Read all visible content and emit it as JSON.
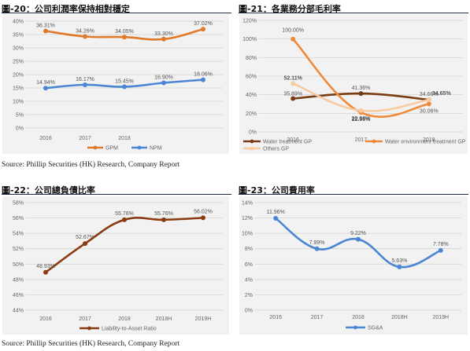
{
  "fig20_title": "圖-20：公司利潤率保持相對穩定",
  "fig21_title": "圖-21：各業務分部毛利率",
  "fig22_title": "圖-22：公司總負債比率",
  "fig23_title": "圖-23：公司費用率",
  "source_top": "Source: Phillip Securities (HK) Research, Company Report",
  "source_bottom": "Source: Phillip Securities (HK) Research, Company Report",
  "chart_data": [
    {
      "type": "line",
      "x": [
        "2016",
        "2017",
        "2018",
        "",
        ""
      ],
      "ylim": [
        0,
        40
      ],
      "yticks": [
        0,
        5,
        10,
        15,
        20,
        25,
        30,
        35,
        40
      ],
      "ytick_labels": [
        "0%",
        "5%",
        "10%",
        "15%",
        "20%",
        "25%",
        "30%",
        "35%",
        "40%"
      ],
      "series": [
        {
          "name": "GPM",
          "color": "#e07a2a",
          "values": [
            36.31,
            34.26,
            34.05,
            33.3,
            37.02
          ],
          "labels": [
            "36.31%",
            "34.26%",
            "34.05%",
            "33.30%",
            "37.02%"
          ]
        },
        {
          "name": "NPM",
          "color": "#4a86d4",
          "values": [
            14.94,
            16.17,
            15.45,
            16.9,
            18.06
          ],
          "labels": [
            "14.94%",
            "16.17%",
            "15.45%",
            "16.90%",
            "18.06%"
          ]
        }
      ]
    },
    {
      "type": "line",
      "x": [
        "2016",
        "2017",
        "2018"
      ],
      "ylim": [
        0,
        120
      ],
      "yticks": [
        0,
        20,
        40,
        60,
        80,
        100,
        120
      ],
      "ytick_labels": [
        "0%",
        "20%",
        "40%",
        "60%",
        "80%",
        "100%",
        "120%"
      ],
      "series": [
        {
          "name": "Water treatment GP",
          "color": "#7a3b12",
          "values": [
            35.89,
            41.36,
            34.65
          ],
          "labels": [
            "35.89%",
            "41.36%",
            "34.65%"
          ]
        },
        {
          "name": "Water environment treatment GP",
          "color": "#ee8a3a",
          "values": [
            100.0,
            20.98,
            30.06
          ],
          "labels": [
            "100.00%",
            "20.98%",
            "30.06%"
          ]
        },
        {
          "name": "Others GP",
          "color": "#f7cba0",
          "values": [
            52.11,
            22.96,
            34.66
          ],
          "labels": [
            "52.11%",
            "22.96%",
            "34.66%"
          ]
        }
      ]
    },
    {
      "type": "line",
      "x": [
        "2016",
        "2017",
        "2018",
        "2018H",
        "2019H"
      ],
      "ylim": [
        44,
        58
      ],
      "yticks": [
        44,
        46,
        48,
        50,
        52,
        54,
        56,
        58
      ],
      "ytick_labels": [
        "44%",
        "46%",
        "48%",
        "50%",
        "52%",
        "54%",
        "56%",
        "58%"
      ],
      "series": [
        {
          "name": "Liability-to-Asset Ratio",
          "color": "#8b3a0f",
          "values": [
            48.93,
            52.67,
            55.76,
            55.76,
            56.02
          ],
          "labels": [
            "48.93%",
            "52.67%",
            "55.76%",
            "55.76%",
            "56.02%"
          ]
        }
      ]
    },
    {
      "type": "line",
      "x": [
        "2016",
        "2017",
        "2018",
        "2018H",
        "2019H"
      ],
      "ylim": [
        0,
        14
      ],
      "yticks": [
        0,
        2,
        4,
        6,
        8,
        10,
        12,
        14
      ],
      "ytick_labels": [
        "0%",
        "2%",
        "4%",
        "6%",
        "8%",
        "10%",
        "12%",
        "14%"
      ],
      "series": [
        {
          "name": "SG&A",
          "color": "#4a86d4",
          "values": [
            11.96,
            7.99,
            9.22,
            5.63,
            7.78
          ],
          "labels": [
            "11.96%",
            "7.99%",
            "9.22%",
            "5.63%",
            "7.78%"
          ]
        }
      ]
    }
  ]
}
